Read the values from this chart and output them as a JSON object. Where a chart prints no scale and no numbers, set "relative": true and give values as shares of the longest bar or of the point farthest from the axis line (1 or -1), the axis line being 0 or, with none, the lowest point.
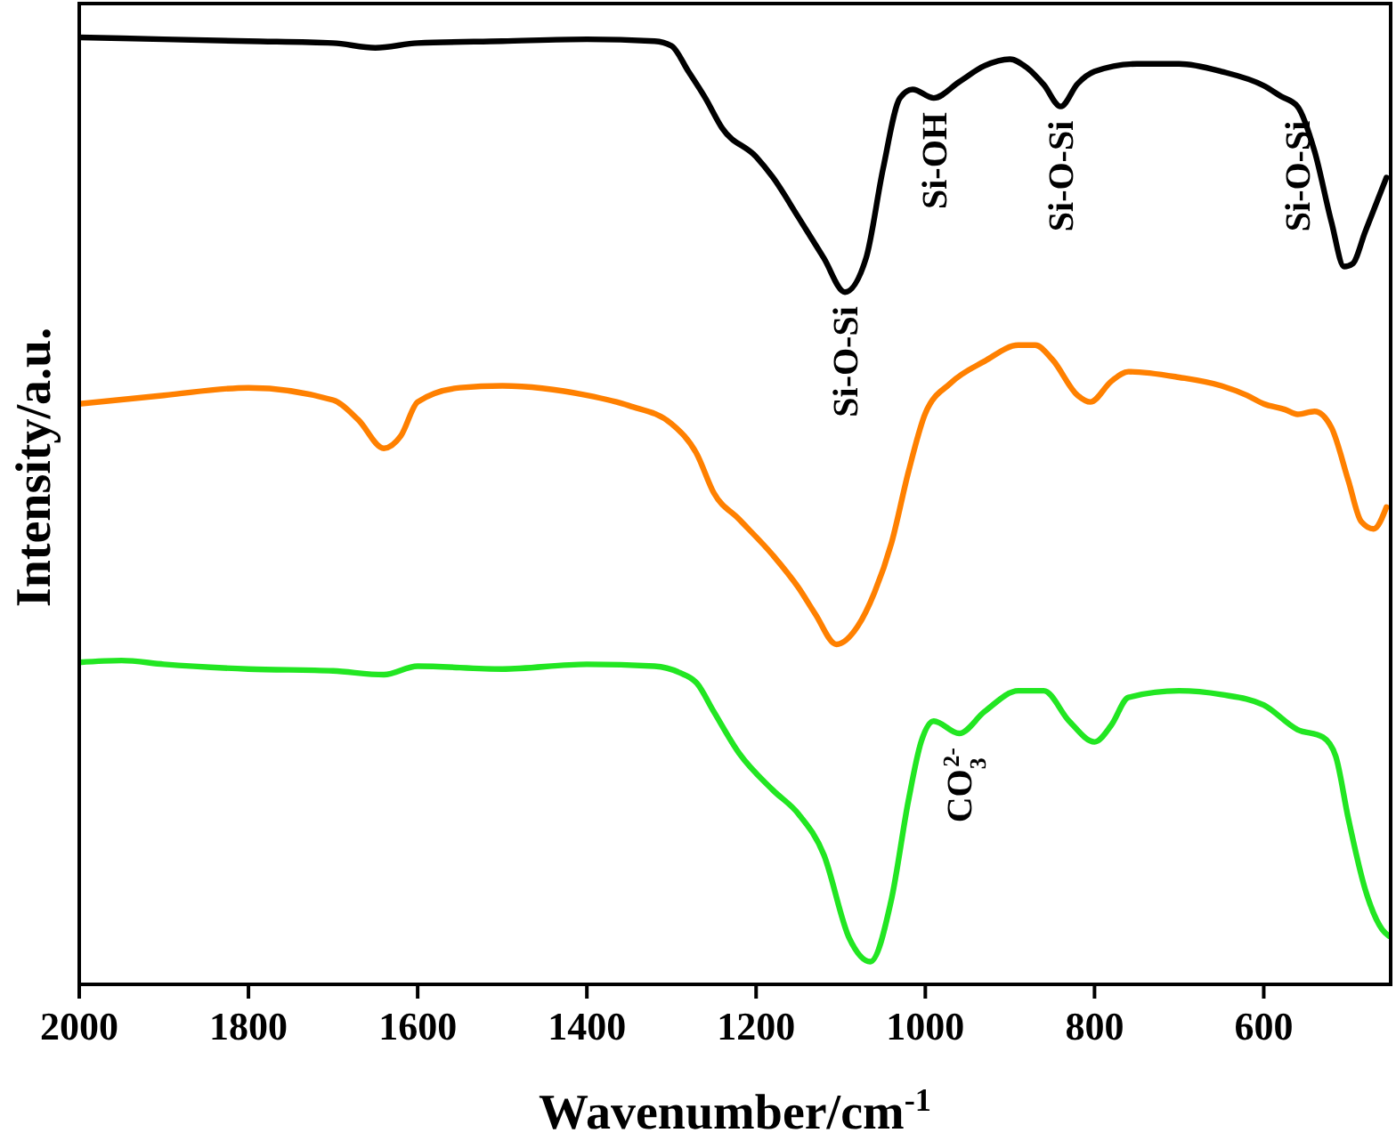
{
  "chart_data": {
    "type": "line",
    "relative": true,
    "xlabel": "Wavenumber/cm$^{-1}$",
    "ylabel": "Intensity/a.u.",
    "xlim": [
      2000,
      450
    ],
    "xticks": [
      2000,
      1800,
      1600,
      1400,
      1200,
      1000,
      800,
      600
    ],
    "grid": false,
    "marker": "none",
    "line_style": "solid",
    "series": [
      {
        "color": "#000000",
        "x": [
          2000,
          1900,
          1800,
          1700,
          1650,
          1600,
          1500,
          1400,
          1320,
          1300,
          1280,
          1260,
          1240,
          1200,
          1180,
          1150,
          1120,
          1095,
          1070,
          1050,
          1030,
          1015,
          990,
          960,
          930,
          900,
          880,
          860,
          840,
          820,
          800,
          750,
          700,
          650,
          600,
          580,
          560,
          540,
          520,
          505,
          495,
          480,
          455
        ],
        "values": [
          1.0,
          0.998,
          0.996,
          0.994,
          0.989,
          0.994,
          0.996,
          0.998,
          0.996,
          0.991,
          0.964,
          0.936,
          0.904,
          0.874,
          0.852,
          0.81,
          0.767,
          0.731,
          0.767,
          0.861,
          0.936,
          0.945,
          0.936,
          0.953,
          0.97,
          0.977,
          0.968,
          0.95,
          0.927,
          0.951,
          0.964,
          0.972,
          0.972,
          0.964,
          0.949,
          0.938,
          0.927,
          0.88,
          0.805,
          0.758,
          0.761,
          0.795,
          0.852
        ]
      },
      {
        "color": "#ff8000",
        "x": [
          2000,
          1900,
          1800,
          1700,
          1670,
          1640,
          1620,
          1600,
          1550,
          1500,
          1400,
          1350,
          1300,
          1270,
          1250,
          1220,
          1180,
          1150,
          1130,
          1105,
          1080,
          1060,
          1040,
          1020,
          1000,
          970,
          930,
          890,
          870,
          850,
          820,
          805,
          780,
          760,
          700,
          650,
          620,
          600,
          575,
          560,
          540,
          520,
          500,
          485,
          470,
          455
        ],
        "values": [
          0.613,
          0.622,
          0.63,
          0.617,
          0.596,
          0.566,
          0.579,
          0.615,
          0.63,
          0.632,
          0.622,
          0.611,
          0.592,
          0.56,
          0.519,
          0.491,
          0.453,
          0.419,
          0.391,
          0.359,
          0.378,
          0.414,
          0.466,
          0.541,
          0.603,
          0.635,
          0.658,
          0.675,
          0.675,
          0.66,
          0.622,
          0.615,
          0.637,
          0.647,
          0.641,
          0.632,
          0.622,
          0.613,
          0.607,
          0.602,
          0.605,
          0.588,
          0.532,
          0.489,
          0.481,
          0.504
        ]
      },
      {
        "color": "#22e622",
        "x": [
          2000,
          1950,
          1900,
          1800,
          1700,
          1640,
          1600,
          1500,
          1400,
          1320,
          1290,
          1270,
          1250,
          1220,
          1180,
          1150,
          1120,
          1090,
          1065,
          1040,
          1020,
          1005,
          990,
          960,
          930,
          890,
          860,
          830,
          800,
          780,
          760,
          700,
          650,
          600,
          560,
          530,
          515,
          500,
          480,
          460,
          452
        ],
        "values": [
          0.34,
          0.342,
          0.338,
          0.333,
          0.331,
          0.327,
          0.336,
          0.333,
          0.338,
          0.336,
          0.329,
          0.318,
          0.288,
          0.244,
          0.205,
          0.18,
          0.137,
          0.049,
          0.024,
          0.09,
          0.194,
          0.256,
          0.278,
          0.265,
          0.288,
          0.31,
          0.31,
          0.278,
          0.256,
          0.274,
          0.303,
          0.31,
          0.306,
          0.295,
          0.269,
          0.261,
          0.241,
          0.175,
          0.1,
          0.058,
          0.051
        ]
      }
    ],
    "annotations": [
      {
        "text": "Si-O-Si",
        "x": 1095,
        "y": 0.731
      },
      {
        "text": "Si-OH",
        "x": 990,
        "y": 0.936
      },
      {
        "text": "Si-O-Si",
        "x": 840,
        "y": 0.927
      },
      {
        "text": "Si-O-Si",
        "x": 560,
        "y": 0.927
      },
      {
        "text": "CO$_{3}$$^{2-}$",
        "x": 960,
        "y": 0.265
      }
    ]
  }
}
